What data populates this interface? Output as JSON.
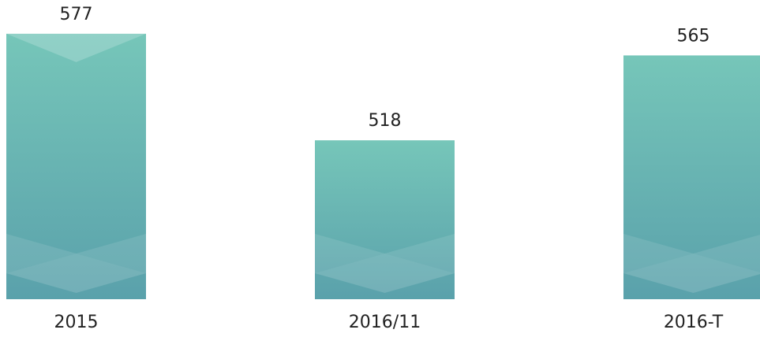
{
  "chart_data": {
    "type": "bar",
    "categories": [
      "2015",
      "2016/11",
      "2016-T"
    ],
    "values": [
      577,
      518,
      565
    ],
    "color": "#6bb8b3",
    "ylim": [
      430,
      580
    ]
  }
}
